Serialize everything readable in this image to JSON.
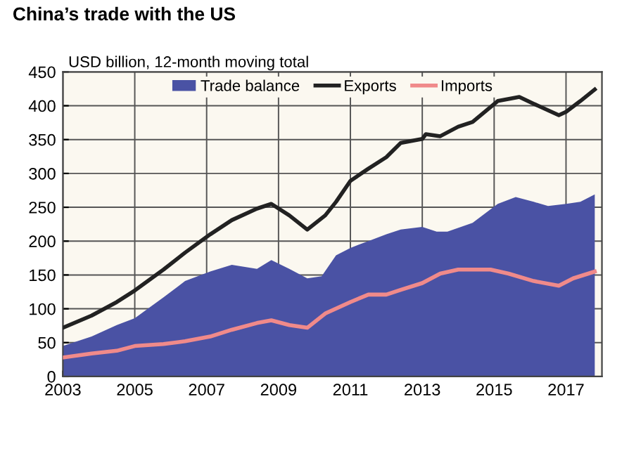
{
  "chart_data": {
    "type": "line",
    "title": "China’s trade with the US",
    "ylabel": "USD billion, 12-month moving total",
    "xlim": [
      2003,
      2018
    ],
    "xticks": [
      {
        "value": 2003,
        "label": "2003"
      },
      {
        "value": 2005,
        "label": "2005"
      },
      {
        "value": 2007,
        "label": "2007"
      },
      {
        "value": 2009,
        "label": "2009"
      },
      {
        "value": 2011,
        "label": "2011"
      },
      {
        "value": 2013,
        "label": "2013"
      },
      {
        "value": 2015,
        "label": "2015"
      },
      {
        "value": 2017,
        "label": "2017"
      }
    ],
    "ylim": [
      0,
      450
    ],
    "yticks": [
      0,
      50,
      100,
      150,
      200,
      250,
      300,
      350,
      400,
      450
    ],
    "grid": true,
    "legend": "top",
    "marker": "none",
    "line_style": "solid",
    "series": [
      {
        "name": "Trade balance",
        "type": "area",
        "color": "#4a52a4",
        "x": [
          2003.0,
          2003.8,
          2004.5,
          2005.0,
          2005.8,
          2006.4,
          2007.1,
          2007.7,
          2008.4,
          2008.8,
          2009.3,
          2009.8,
          2010.2,
          2010.6,
          2011.0,
          2011.5,
          2012.0,
          2012.4,
          2013.0,
          2013.4,
          2013.7,
          2014.4,
          2015.1,
          2015.6,
          2016.1,
          2016.5,
          2017.0,
          2017.4,
          2017.8
        ],
        "values": [
          45,
          59,
          76,
          86,
          117,
          141,
          155,
          165,
          159,
          172,
          159,
          145,
          148,
          179,
          190,
          200,
          210,
          217,
          221,
          214,
          214,
          227,
          255,
          265,
          258,
          252,
          255,
          258,
          269
        ]
      },
      {
        "name": "Exports",
        "color": "#222222",
        "x": [
          2003.0,
          2003.8,
          2004.5,
          2005.0,
          2005.8,
          2006.4,
          2007.1,
          2007.7,
          2008.4,
          2008.8,
          2009.3,
          2009.8,
          2010.3,
          2010.6,
          2011.0,
          2011.5,
          2012.0,
          2012.4,
          2013.0,
          2013.1,
          2013.5,
          2014.0,
          2014.4,
          2015.1,
          2015.7,
          2016.1,
          2016.8,
          2017.0,
          2017.4,
          2017.8
        ],
        "values": [
          72,
          90,
          110,
          127,
          158,
          183,
          210,
          231,
          248,
          255,
          238,
          217,
          238,
          258,
          289,
          307,
          324,
          345,
          351,
          358,
          355,
          369,
          376,
          407,
          413,
          403,
          386,
          391,
          407,
          424
        ]
      },
      {
        "name": "Imports",
        "color": "#f08a8a",
        "x": [
          2003.0,
          2003.8,
          2004.5,
          2005.0,
          2005.8,
          2006.4,
          2007.1,
          2007.7,
          2008.4,
          2008.8,
          2009.3,
          2009.8,
          2010.3,
          2011.0,
          2011.5,
          2012.0,
          2012.4,
          2013.0,
          2013.5,
          2014.0,
          2014.4,
          2014.9,
          2015.4,
          2016.1,
          2016.8,
          2017.2,
          2017.8
        ],
        "values": [
          28,
          34,
          38,
          45,
          48,
          52,
          59,
          69,
          79,
          83,
          76,
          72,
          93,
          110,
          121,
          121,
          128,
          138,
          152,
          158,
          158,
          158,
          152,
          141,
          134,
          145,
          155
        ]
      }
    ]
  }
}
